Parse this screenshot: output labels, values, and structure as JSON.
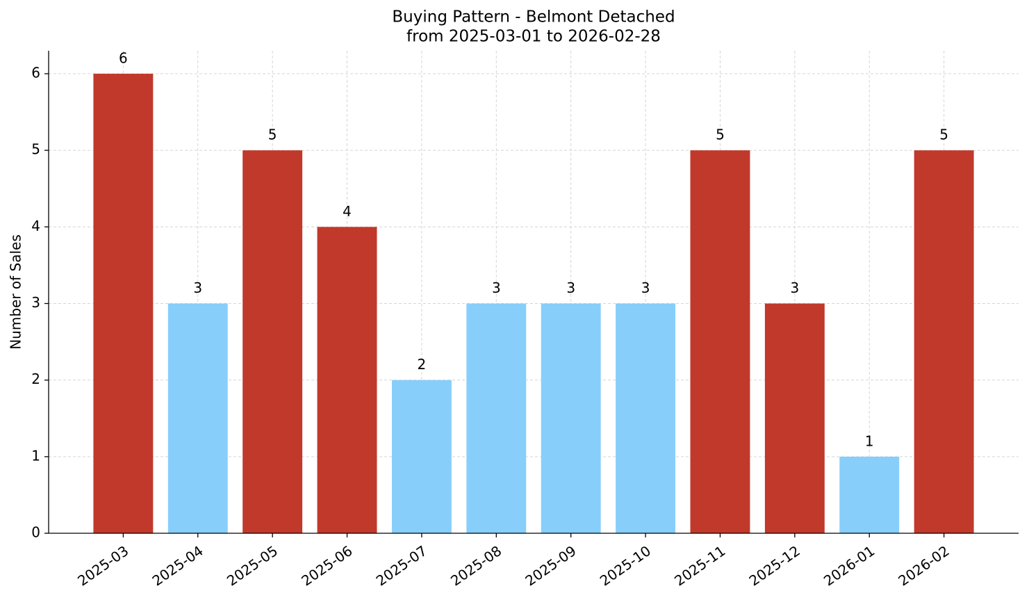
{
  "chart_data": {
    "type": "bar",
    "title": "Buying Pattern - Belmont Detached",
    "subtitle": "from 2025-03-01 to 2026-02-28",
    "y_label": "Number of Sales",
    "categories": [
      "2025-03",
      "2025-04",
      "2025-05",
      "2025-06",
      "2025-07",
      "2025-08",
      "2025-09",
      "2025-10",
      "2025-11",
      "2025-12",
      "2026-01",
      "2026-02"
    ],
    "values": [
      6,
      3,
      5,
      4,
      2,
      3,
      3,
      3,
      5,
      3,
      1,
      5
    ],
    "colors": [
      "#c0392b",
      "#87cefa",
      "#c0392b",
      "#c0392b",
      "#87cefa",
      "#87cefa",
      "#87cefa",
      "#87cefa",
      "#c0392b",
      "#c0392b",
      "#87cefa",
      "#c0392b"
    ],
    "ylim": [
      0,
      6.3
    ],
    "yticks": [
      0,
      1,
      2,
      3,
      4,
      5,
      6
    ],
    "grid": true
  }
}
